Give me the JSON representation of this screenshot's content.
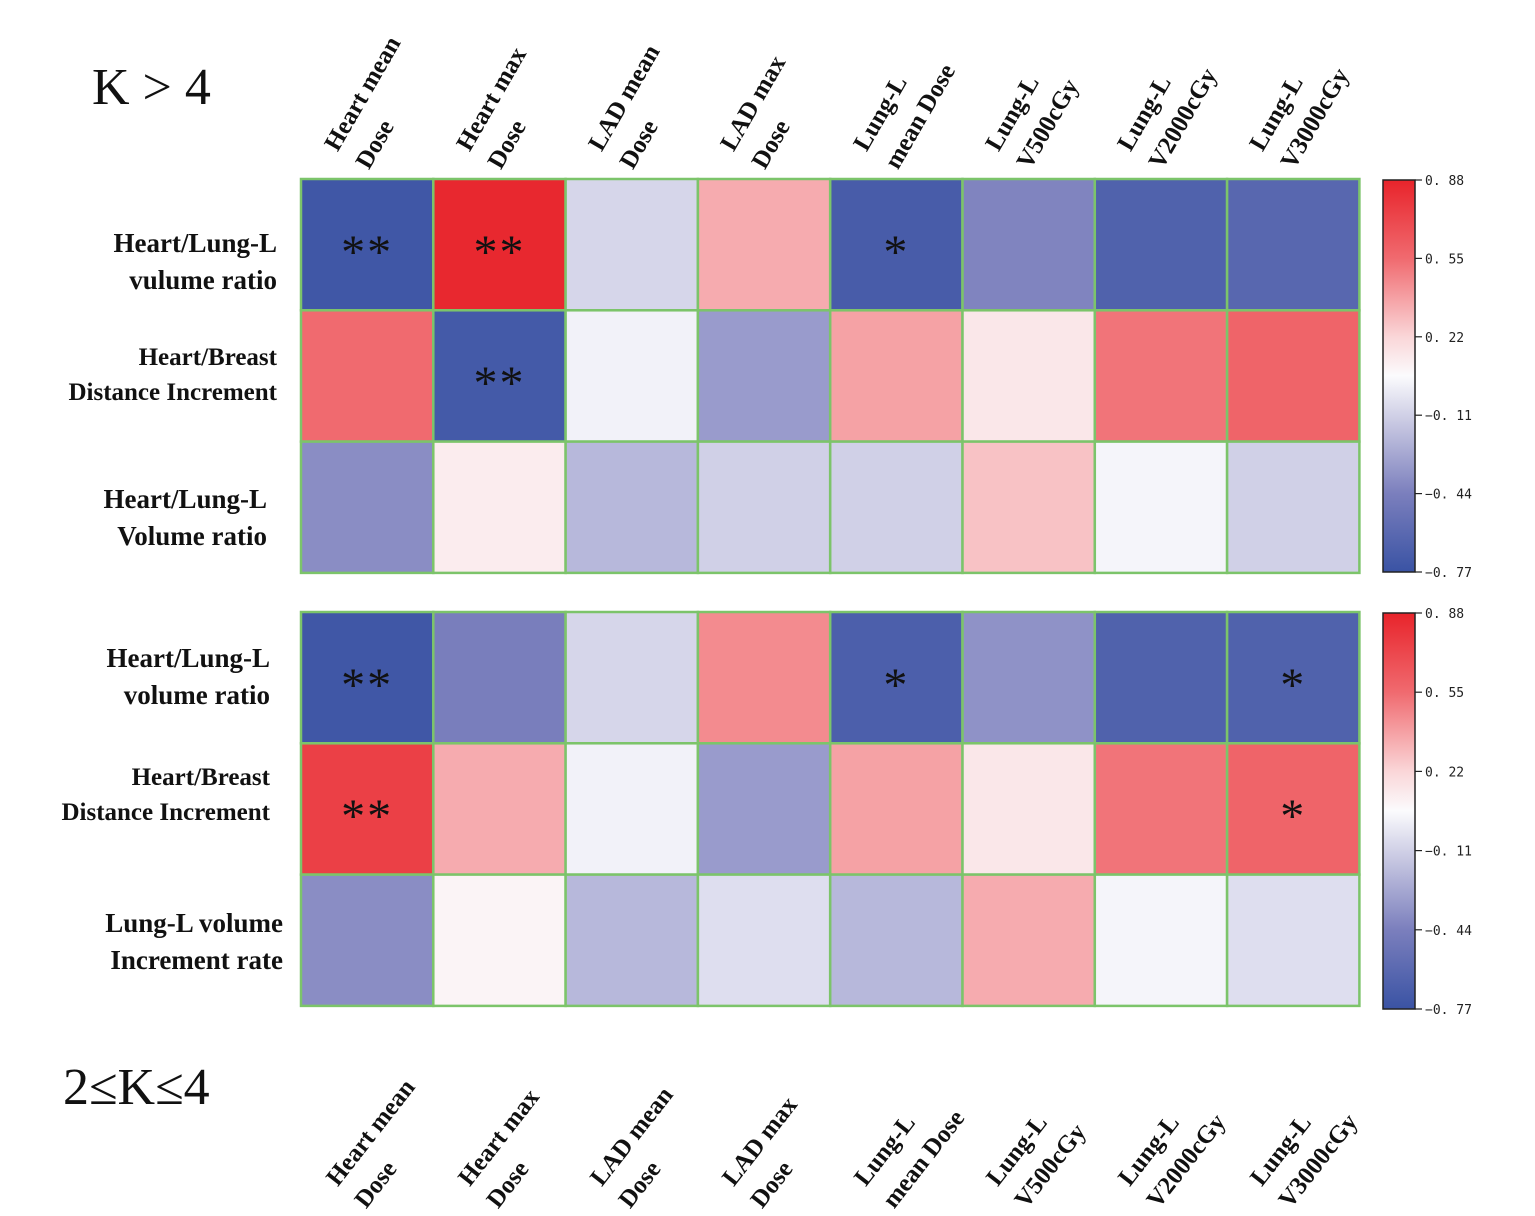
{
  "chart_data": [
    {
      "type": "heatmap",
      "title": "K > 4",
      "columns": [
        "Heart mean\nDose",
        "Heart max\nDose",
        "LAD mean\nDose",
        "LAD max\nDose",
        "Lung-L\nmean Dose",
        "Lung-L\nV500cGy",
        "Lung-L\nV2000cGy",
        "Lung-L\nV3000cGy"
      ],
      "rows": [
        "Heart/Lung-L\nvulume ratio",
        "Heart/Breast\nDistance Increment",
        "Heart/Lung-L\nVolume ratio"
      ],
      "values": [
        [
          -0.74,
          0.86,
          -0.08,
          0.35,
          -0.7,
          -0.42,
          -0.66,
          -0.62
        ],
        [
          0.55,
          -0.72,
          0.02,
          -0.32,
          0.38,
          0.14,
          0.52,
          0.58
        ],
        [
          -0.38,
          0.12,
          -0.2,
          -0.1,
          -0.1,
          0.28,
          0.03,
          -0.1
        ]
      ],
      "significance": [
        [
          "**",
          "**",
          "",
          "",
          "*",
          "",
          "",
          ""
        ],
        [
          "",
          "**",
          "",
          "",
          "",
          "",
          "",
          ""
        ],
        [
          "",
          "",
          "",
          "",
          "",
          "",
          "",
          ""
        ]
      ],
      "colorbar": {
        "min": -0.77,
        "max": 0.88,
        "ticks": [
          "0. 88",
          "0. 55",
          "0. 22",
          "−0. 11",
          "−0. 44",
          "−0. 77"
        ]
      }
    },
    {
      "type": "heatmap",
      "title": "2≤K≤4",
      "columns": [
        "Heart mean\nDose",
        "Heart max\nDose",
        "LAD mean\nDose",
        "LAD max\nDose",
        "Lung-L\nmean Dose",
        "Lung-L\nV500cGy",
        "Lung-L\nV2000cGy",
        "Lung-L\nV3000cGy"
      ],
      "rows": [
        "Heart/Lung-L\nvolume ratio",
        "Heart/Breast\nDistance Increment",
        "Lung-L volume\nIncrement rate"
      ],
      "values": [
        [
          -0.74,
          -0.45,
          -0.08,
          0.45,
          -0.68,
          -0.36,
          -0.66,
          -0.66
        ],
        [
          0.75,
          0.35,
          0.02,
          -0.32,
          0.38,
          0.14,
          0.52,
          0.58
        ],
        [
          -0.38,
          0.08,
          -0.2,
          -0.05,
          -0.2,
          0.35,
          0.03,
          -0.05
        ]
      ],
      "significance": [
        [
          "**",
          "",
          "",
          "",
          "*",
          "",
          "",
          "*"
        ],
        [
          "**",
          "",
          "",
          "",
          "",
          "",
          "",
          "*"
        ],
        [
          "",
          "",
          "",
          "",
          "",
          "",
          "",
          ""
        ]
      ],
      "colorbar": {
        "min": -0.77,
        "max": 0.88,
        "ticks": [
          "0. 88",
          "0. 55",
          "0. 22",
          "−0. 11",
          "−0. 44",
          "−0. 77"
        ]
      }
    }
  ]
}
